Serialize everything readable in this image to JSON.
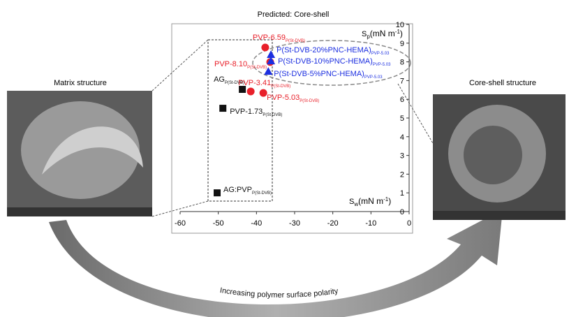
{
  "chart_data": {
    "type": "scatter",
    "title": "Predicted: Core-shell",
    "xlim": [
      -60,
      0
    ],
    "xticks": [
      -60,
      -50,
      -40,
      -30,
      -20,
      -10,
      0
    ],
    "ylim": [
      0,
      10
    ],
    "yticks": [
      0,
      1,
      2,
      3,
      4,
      5,
      6,
      7,
      8,
      9,
      10
    ],
    "x_label": [
      "S",
      "w",
      "(mN m",
      "-1",
      ")"
    ],
    "y_label": [
      "S",
      "p",
      "(mN m",
      "-1",
      ")"
    ],
    "series": [
      {
        "marker": "circle",
        "color": "#e8202a",
        "x": [
          -37.7,
          -36.4,
          -41.5,
          -38.2
        ],
        "values": [
          8.77,
          7.99,
          6.42,
          6.34
        ],
        "labels": [
          "PVP-6.59",
          "PVP-8.10",
          "PVP-3.41",
          "PVP-5.03"
        ],
        "label_subs": [
          "P(St-DVB)",
          "P(St-DVB)",
          "P(St-DVB)",
          "P(St-DVB)"
        ]
      },
      {
        "marker": "triangle",
        "color": "#1c2fe0",
        "x": [
          -36.2,
          -36.2,
          -36.9
        ],
        "values": [
          8.36,
          8.02,
          7.46
        ],
        "labels": [
          "P(St-DVB-20%PNC-HEMA)",
          "P(St-DVB-10%PNC-HEMA)",
          "P(St-DVB-5%PNC-HEMA)"
        ],
        "label_subs": [
          "PVP-5.03",
          "PVP-5.03",
          "PVP-5.03"
        ]
      },
      {
        "marker": "square",
        "color": "#111111",
        "x": [
          -43.7,
          -48.8,
          -50.3
        ],
        "values": [
          6.53,
          5.52,
          1.0
        ],
        "labels": [
          "AG",
          "PVP-1.73",
          "AG:PVP"
        ],
        "label_subs": [
          "P(St-DVB)",
          "P(St-DVB)",
          "P(St-DVB)"
        ]
      }
    ]
  },
  "left_caption": "Matrix structure",
  "right_caption": "Core-shell structure",
  "arrow_caption": "Increasing polymer surface polarity"
}
